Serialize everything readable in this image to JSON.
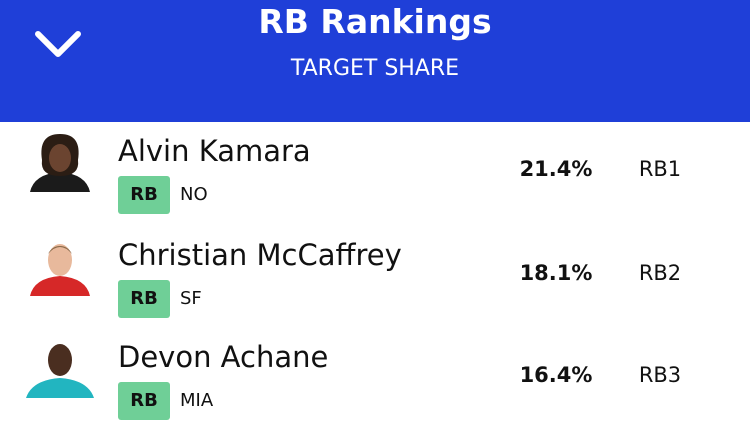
{
  "header": {
    "title": "RB Rankings",
    "subtitle": "TARGET SHARE"
  },
  "rows": [
    {
      "name": "Alvin Kamara",
      "position": "RB",
      "team": "NO",
      "value": "21.4%",
      "rank": "RB1"
    },
    {
      "name": "Christian McCaffrey",
      "position": "RB",
      "team": "SF",
      "value": "18.1%",
      "rank": "RB2"
    },
    {
      "name": "Devon Achane",
      "position": "RB",
      "team": "MIA",
      "value": "16.4%",
      "rank": "RB3"
    }
  ]
}
